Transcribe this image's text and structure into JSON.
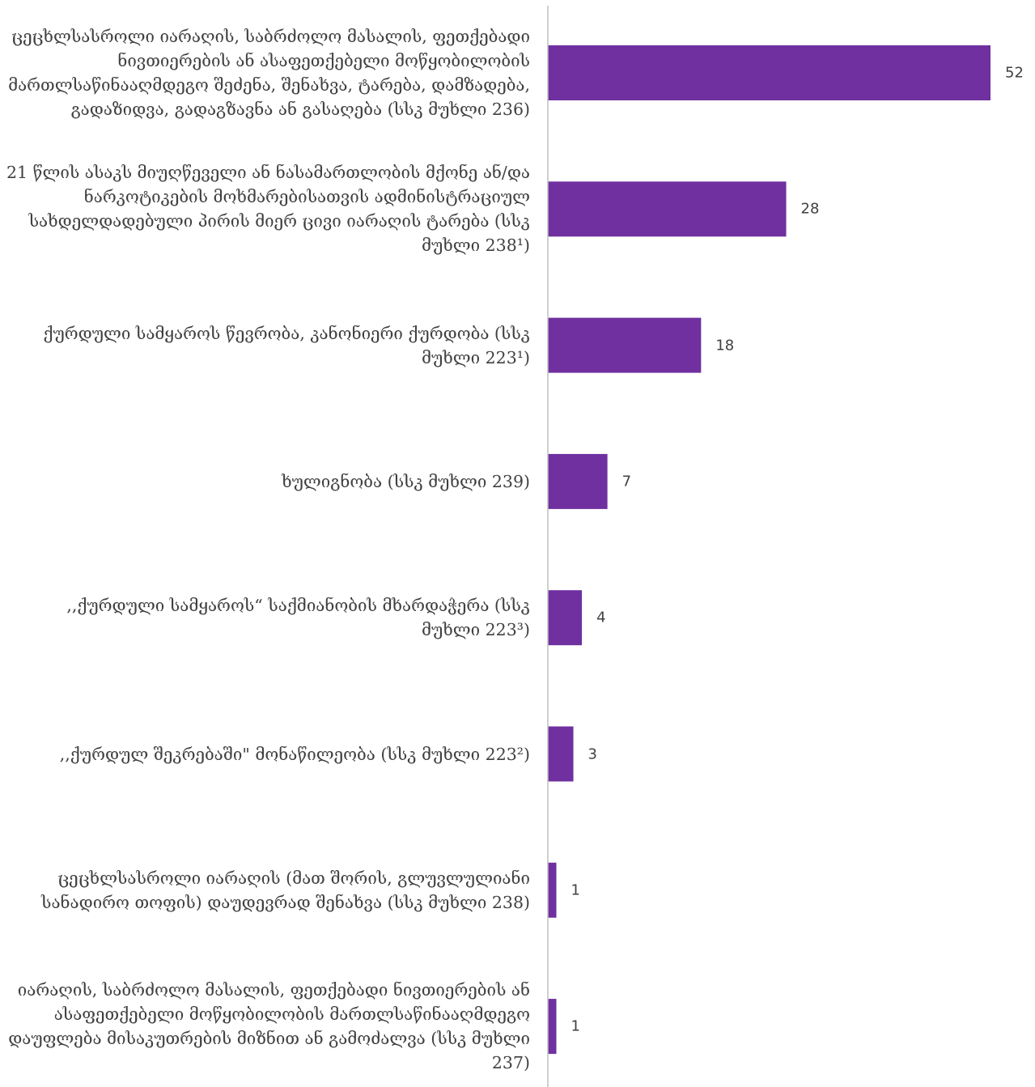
{
  "chart_data": {
    "type": "bar",
    "orientation": "horizontal",
    "categories": [
      "ცეცხლსასროლი იარაღის, საბრძოლო მასალის, ფეთქებადი ნივთიერების ან ასაფეთქებელი მოწყობილობის მართლსაწინააღმდეგო შეძენა, შენახვა, ტარება, დამზადება, გადაზიდვა, გადაგზავნა ან გასაღება (სსკ მუხლი 236)",
      "21 წლის ასაკს მიუღწეველი ან ნასამართლობის მქონე ან/და ნარკოტიკების მოხმარებისათვის ადმინისტრაციულ სახდელდადებული პირის მიერ ცივი იარაღის ტარება (სსკ მუხლი 238¹)",
      "ქურდული სამყაროს წევრობა, კანონიერი ქურდობა (სსკ მუხლი 223¹)",
      "ხულიგნობა (სსკ მუხლი 239)",
      ",,ქურდული სამყაროს“ საქმიანობის მხარდაჭერა (სსკ მუხლი 223³)",
      ",,ქურდულ შეკრებაში\" მონაწილეობა (სსკ მუხლი 223²)",
      "ცეცხლსასროლი იარაღის (მათ შორის, გლუვლულიანი სანადირო თოფის) დაუდევრად შენახვა (სსკ მუხლი 238)",
      "იარაღის, საბრძოლო მასალის, ფეთქებადი ნივთიერების ან ასაფეთქებელი მოწყობილობის მართლსაწინააღმდეგო დაუფლება მისაკუთრების მიზნით ან გამოძალვა (სსკ მუხლი 237)"
    ],
    "values": [
      52,
      28,
      18,
      7,
      4,
      3,
      1,
      1
    ],
    "bar_color": "#7030a0",
    "axis_color": "#bfbfbf",
    "xlim": [
      0,
      52
    ],
    "grid": false,
    "legend": "none",
    "title": "",
    "xlabel": "",
    "ylabel": ""
  }
}
